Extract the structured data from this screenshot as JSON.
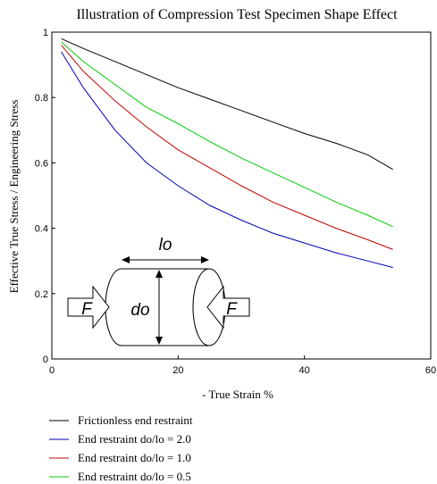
{
  "chart_data": {
    "type": "line",
    "title": "Illustration of Compression Test Specimen Shape Effect",
    "xlabel": "- True Strain %",
    "ylabel": "Effective True Stress / Engineering Stress",
    "xlim": [
      0,
      60
    ],
    "ylim": [
      0,
      1
    ],
    "xticks": [
      0,
      20,
      40,
      60
    ],
    "yticks": [
      0,
      0.2,
      0.4,
      0.6,
      0.8,
      1
    ],
    "grid": false,
    "legend_position": "bottom",
    "series": [
      {
        "name": "Frictionless end restraint",
        "color": "#000000",
        "x": [
          1.5,
          5,
          10,
          15,
          20,
          25,
          30,
          35,
          40,
          45,
          50,
          54
        ],
        "y": [
          0.98,
          0.95,
          0.91,
          0.87,
          0.83,
          0.795,
          0.76,
          0.725,
          0.69,
          0.66,
          0.625,
          0.58
        ]
      },
      {
        "name": "End restraint do/lo = 2.0",
        "color": "#0000b4",
        "x": [
          1.5,
          5,
          10,
          15,
          20,
          25,
          30,
          35,
          40,
          45,
          50,
          54
        ],
        "y": [
          0.94,
          0.83,
          0.7,
          0.6,
          0.53,
          0.47,
          0.425,
          0.385,
          0.355,
          0.325,
          0.3,
          0.28
        ]
      },
      {
        "name": "End restraint do/lo = 1.0",
        "color": "#c00000",
        "x": [
          1.5,
          5,
          10,
          15,
          20,
          25,
          30,
          35,
          40,
          45,
          50,
          54
        ],
        "y": [
          0.96,
          0.88,
          0.79,
          0.71,
          0.64,
          0.585,
          0.53,
          0.48,
          0.44,
          0.4,
          0.365,
          0.335
        ]
      },
      {
        "name": "End restraint do/lo = 0.5",
        "color": "#00cc00",
        "x": [
          1.5,
          5,
          10,
          15,
          20,
          25,
          30,
          35,
          40,
          45,
          50,
          54
        ],
        "y": [
          0.97,
          0.91,
          0.84,
          0.77,
          0.72,
          0.665,
          0.615,
          0.57,
          0.525,
          0.48,
          0.44,
          0.405
        ]
      }
    ]
  },
  "diagram": {
    "length_label": "lo",
    "diameter_label": "do",
    "force_label_left": "F",
    "force_label_right": "F"
  }
}
